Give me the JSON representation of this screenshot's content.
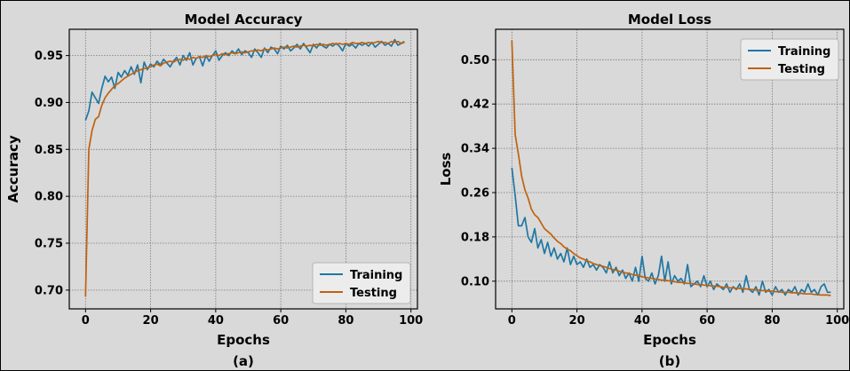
{
  "colors": {
    "training": "#1f77a4",
    "testing": "#c0620e",
    "axes_bg": "#d9d9d9",
    "frame": "#000000",
    "grid": "#7a7a7a"
  },
  "chart_data": [
    {
      "type": "line",
      "title": "Model Accuracy",
      "panel_label": "(a)",
      "xlabel": "Epochs",
      "ylabel": "Accuracy",
      "xlim": [
        -5,
        102
      ],
      "ylim": [
        0.68,
        0.978
      ],
      "xticks": [
        0,
        20,
        40,
        60,
        80,
        100
      ],
      "xtick_labels": [
        "0",
        "20",
        "40",
        "60",
        "80",
        "100"
      ],
      "yticks": [
        0.7,
        0.75,
        0.8,
        0.85,
        0.9,
        0.95
      ],
      "ytick_labels": [
        "0.70",
        "0.75",
        "0.80",
        "0.85",
        "0.90",
        "0.95"
      ],
      "grid": true,
      "legend": "lower right",
      "series": [
        {
          "name": "Training",
          "color": "#1f77a4",
          "x": [
            0,
            1,
            2,
            3,
            4,
            5,
            6,
            7,
            8,
            9,
            10,
            11,
            12,
            13,
            14,
            15,
            16,
            17,
            18,
            19,
            20,
            21,
            22,
            23,
            24,
            25,
            26,
            27,
            28,
            29,
            30,
            31,
            32,
            33,
            34,
            35,
            36,
            37,
            38,
            39,
            40,
            41,
            42,
            43,
            44,
            45,
            46,
            47,
            48,
            49,
            50,
            51,
            52,
            53,
            54,
            55,
            56,
            57,
            58,
            59,
            60,
            61,
            62,
            63,
            64,
            65,
            66,
            67,
            68,
            69,
            70,
            71,
            72,
            73,
            74,
            75,
            76,
            77,
            78,
            79,
            80,
            81,
            82,
            83,
            84,
            85,
            86,
            87,
            88,
            89,
            90,
            91,
            92,
            93,
            94,
            95,
            96,
            97,
            98
          ],
          "y": [
            0.881,
            0.891,
            0.911,
            0.905,
            0.899,
            0.915,
            0.928,
            0.922,
            0.927,
            0.915,
            0.932,
            0.927,
            0.934,
            0.929,
            0.938,
            0.93,
            0.94,
            0.921,
            0.943,
            0.935,
            0.941,
            0.938,
            0.944,
            0.94,
            0.946,
            0.942,
            0.938,
            0.944,
            0.948,
            0.94,
            0.95,
            0.945,
            0.953,
            0.94,
            0.947,
            0.949,
            0.939,
            0.95,
            0.944,
            0.95,
            0.955,
            0.945,
            0.95,
            0.953,
            0.95,
            0.955,
            0.952,
            0.957,
            0.951,
            0.955,
            0.953,
            0.948,
            0.957,
            0.953,
            0.948,
            0.958,
            0.953,
            0.959,
            0.957,
            0.952,
            0.96,
            0.957,
            0.961,
            0.955,
            0.958,
            0.962,
            0.957,
            0.963,
            0.958,
            0.953,
            0.962,
            0.958,
            0.963,
            0.96,
            0.958,
            0.962,
            0.96,
            0.963,
            0.96,
            0.955,
            0.963,
            0.96,
            0.962,
            0.958,
            0.963,
            0.961,
            0.963,
            0.96,
            0.964,
            0.959,
            0.962,
            0.965,
            0.961,
            0.963,
            0.96,
            0.967,
            0.961,
            0.963,
            0.965
          ]
        },
        {
          "name": "Testing",
          "color": "#c0620e",
          "x": [
            0,
            1,
            2,
            3,
            4,
            5,
            6,
            7,
            8,
            9,
            10,
            11,
            12,
            13,
            14,
            15,
            16,
            17,
            18,
            19,
            20,
            21,
            22,
            23,
            24,
            25,
            26,
            27,
            28,
            29,
            30,
            31,
            32,
            33,
            34,
            35,
            36,
            37,
            38,
            39,
            40,
            41,
            42,
            43,
            44,
            45,
            46,
            47,
            48,
            49,
            50,
            51,
            52,
            53,
            54,
            55,
            56,
            57,
            58,
            59,
            60,
            61,
            62,
            63,
            64,
            65,
            66,
            67,
            68,
            69,
            70,
            71,
            72,
            73,
            74,
            75,
            76,
            77,
            78,
            79,
            80,
            81,
            82,
            83,
            84,
            85,
            86,
            87,
            88,
            89,
            90,
            91,
            92,
            93,
            94,
            95,
            96,
            97,
            98
          ],
          "y": [
            0.693,
            0.85,
            0.87,
            0.882,
            0.885,
            0.897,
            0.905,
            0.91,
            0.914,
            0.918,
            0.92,
            0.923,
            0.926,
            0.928,
            0.93,
            0.932,
            0.934,
            0.935,
            0.936,
            0.937,
            0.938,
            0.94,
            0.941,
            0.939,
            0.942,
            0.943,
            0.944,
            0.943,
            0.945,
            0.946,
            0.945,
            0.947,
            0.946,
            0.948,
            0.947,
            0.949,
            0.948,
            0.95,
            0.949,
            0.95,
            0.951,
            0.95,
            0.952,
            0.951,
            0.952,
            0.953,
            0.952,
            0.953,
            0.954,
            0.953,
            0.954,
            0.955,
            0.955,
            0.956,
            0.955,
            0.957,
            0.956,
            0.957,
            0.958,
            0.957,
            0.958,
            0.959,
            0.958,
            0.959,
            0.96,
            0.959,
            0.96,
            0.961,
            0.96,
            0.961,
            0.96,
            0.962,
            0.961,
            0.962,
            0.961,
            0.962,
            0.963,
            0.962,
            0.963,
            0.962,
            0.963,
            0.962,
            0.964,
            0.963,
            0.963,
            0.964,
            0.963,
            0.964,
            0.963,
            0.964,
            0.965,
            0.964,
            0.964,
            0.963,
            0.965,
            0.964,
            0.965,
            0.963,
            0.964
          ]
        }
      ]
    },
    {
      "type": "line",
      "title": "Model Loss",
      "panel_label": "(b)",
      "xlabel": "Epochs",
      "ylabel": "Loss",
      "xlim": [
        -5,
        102
      ],
      "ylim": [
        0.05,
        0.555
      ],
      "xticks": [
        0,
        20,
        40,
        60,
        80,
        100
      ],
      "xtick_labels": [
        "0",
        "20",
        "40",
        "60",
        "80",
        "100"
      ],
      "yticks": [
        0.1,
        0.18,
        0.26,
        0.34,
        0.42,
        0.5
      ],
      "ytick_labels": [
        "0.10",
        "0.18",
        "0.26",
        "0.34",
        "0.42",
        "0.50"
      ],
      "grid": true,
      "legend": "upper right",
      "series": [
        {
          "name": "Training",
          "color": "#1f77a4",
          "x": [
            0,
            1,
            2,
            3,
            4,
            5,
            6,
            7,
            8,
            9,
            10,
            11,
            12,
            13,
            14,
            15,
            16,
            17,
            18,
            19,
            20,
            21,
            22,
            23,
            24,
            25,
            26,
            27,
            28,
            29,
            30,
            31,
            32,
            33,
            34,
            35,
            36,
            37,
            38,
            39,
            40,
            41,
            42,
            43,
            44,
            45,
            46,
            47,
            48,
            49,
            50,
            51,
            52,
            53,
            54,
            55,
            56,
            57,
            58,
            59,
            60,
            61,
            62,
            63,
            64,
            65,
            66,
            67,
            68,
            69,
            70,
            71,
            72,
            73,
            74,
            75,
            76,
            77,
            78,
            79,
            80,
            81,
            82,
            83,
            84,
            85,
            86,
            87,
            88,
            89,
            90,
            91,
            92,
            93,
            94,
            95,
            96,
            97,
            98
          ],
          "y": [
            0.305,
            0.255,
            0.2,
            0.2,
            0.215,
            0.18,
            0.17,
            0.195,
            0.16,
            0.175,
            0.15,
            0.17,
            0.145,
            0.16,
            0.14,
            0.15,
            0.135,
            0.16,
            0.13,
            0.145,
            0.13,
            0.135,
            0.125,
            0.14,
            0.125,
            0.13,
            0.12,
            0.13,
            0.125,
            0.115,
            0.135,
            0.115,
            0.125,
            0.11,
            0.12,
            0.105,
            0.115,
            0.1,
            0.125,
            0.1,
            0.145,
            0.105,
            0.1,
            0.115,
            0.095,
            0.11,
            0.145,
            0.1,
            0.135,
            0.095,
            0.11,
            0.1,
            0.105,
            0.095,
            0.13,
            0.09,
            0.095,
            0.1,
            0.09,
            0.11,
            0.09,
            0.1,
            0.085,
            0.095,
            0.09,
            0.085,
            0.095,
            0.08,
            0.09,
            0.085,
            0.095,
            0.08,
            0.11,
            0.085,
            0.08,
            0.09,
            0.075,
            0.1,
            0.08,
            0.085,
            0.075,
            0.09,
            0.08,
            0.085,
            0.075,
            0.085,
            0.08,
            0.09,
            0.075,
            0.085,
            0.08,
            0.095,
            0.08,
            0.085,
            0.075,
            0.09,
            0.095,
            0.08,
            0.08
          ]
        },
        {
          "name": "Testing",
          "color": "#c0620e",
          "x": [
            0,
            1,
            2,
            3,
            4,
            5,
            6,
            7,
            8,
            9,
            10,
            11,
            12,
            13,
            14,
            15,
            16,
            17,
            18,
            19,
            20,
            21,
            22,
            23,
            24,
            25,
            26,
            27,
            28,
            29,
            30,
            31,
            32,
            33,
            34,
            35,
            36,
            37,
            38,
            39,
            40,
            41,
            42,
            43,
            44,
            45,
            46,
            47,
            48,
            49,
            50,
            51,
            52,
            53,
            54,
            55,
            56,
            57,
            58,
            59,
            60,
            61,
            62,
            63,
            64,
            65,
            66,
            67,
            68,
            69,
            70,
            71,
            72,
            73,
            74,
            75,
            76,
            77,
            78,
            79,
            80,
            81,
            82,
            83,
            84,
            85,
            86,
            87,
            88,
            89,
            90,
            91,
            92,
            93,
            94,
            95,
            96,
            97,
            98
          ],
          "y": [
            0.535,
            0.365,
            0.33,
            0.29,
            0.265,
            0.25,
            0.23,
            0.22,
            0.215,
            0.205,
            0.195,
            0.19,
            0.185,
            0.178,
            0.172,
            0.168,
            0.162,
            0.158,
            0.155,
            0.15,
            0.146,
            0.142,
            0.14,
            0.137,
            0.135,
            0.132,
            0.13,
            0.128,
            0.127,
            0.125,
            0.123,
            0.121,
            0.12,
            0.118,
            0.116,
            0.115,
            0.114,
            0.112,
            0.111,
            0.11,
            0.108,
            0.107,
            0.106,
            0.105,
            0.104,
            0.103,
            0.102,
            0.102,
            0.101,
            0.1,
            0.099,
            0.098,
            0.098,
            0.097,
            0.096,
            0.096,
            0.095,
            0.094,
            0.094,
            0.093,
            0.092,
            0.092,
            0.091,
            0.091,
            0.09,
            0.089,
            0.089,
            0.088,
            0.088,
            0.087,
            0.087,
            0.086,
            0.086,
            0.085,
            0.085,
            0.084,
            0.084,
            0.083,
            0.083,
            0.082,
            0.082,
            0.081,
            0.081,
            0.08,
            0.08,
            0.08,
            0.079,
            0.079,
            0.078,
            0.078,
            0.077,
            0.077,
            0.077,
            0.076,
            0.076,
            0.075,
            0.075,
            0.075,
            0.074
          ]
        }
      ]
    }
  ]
}
